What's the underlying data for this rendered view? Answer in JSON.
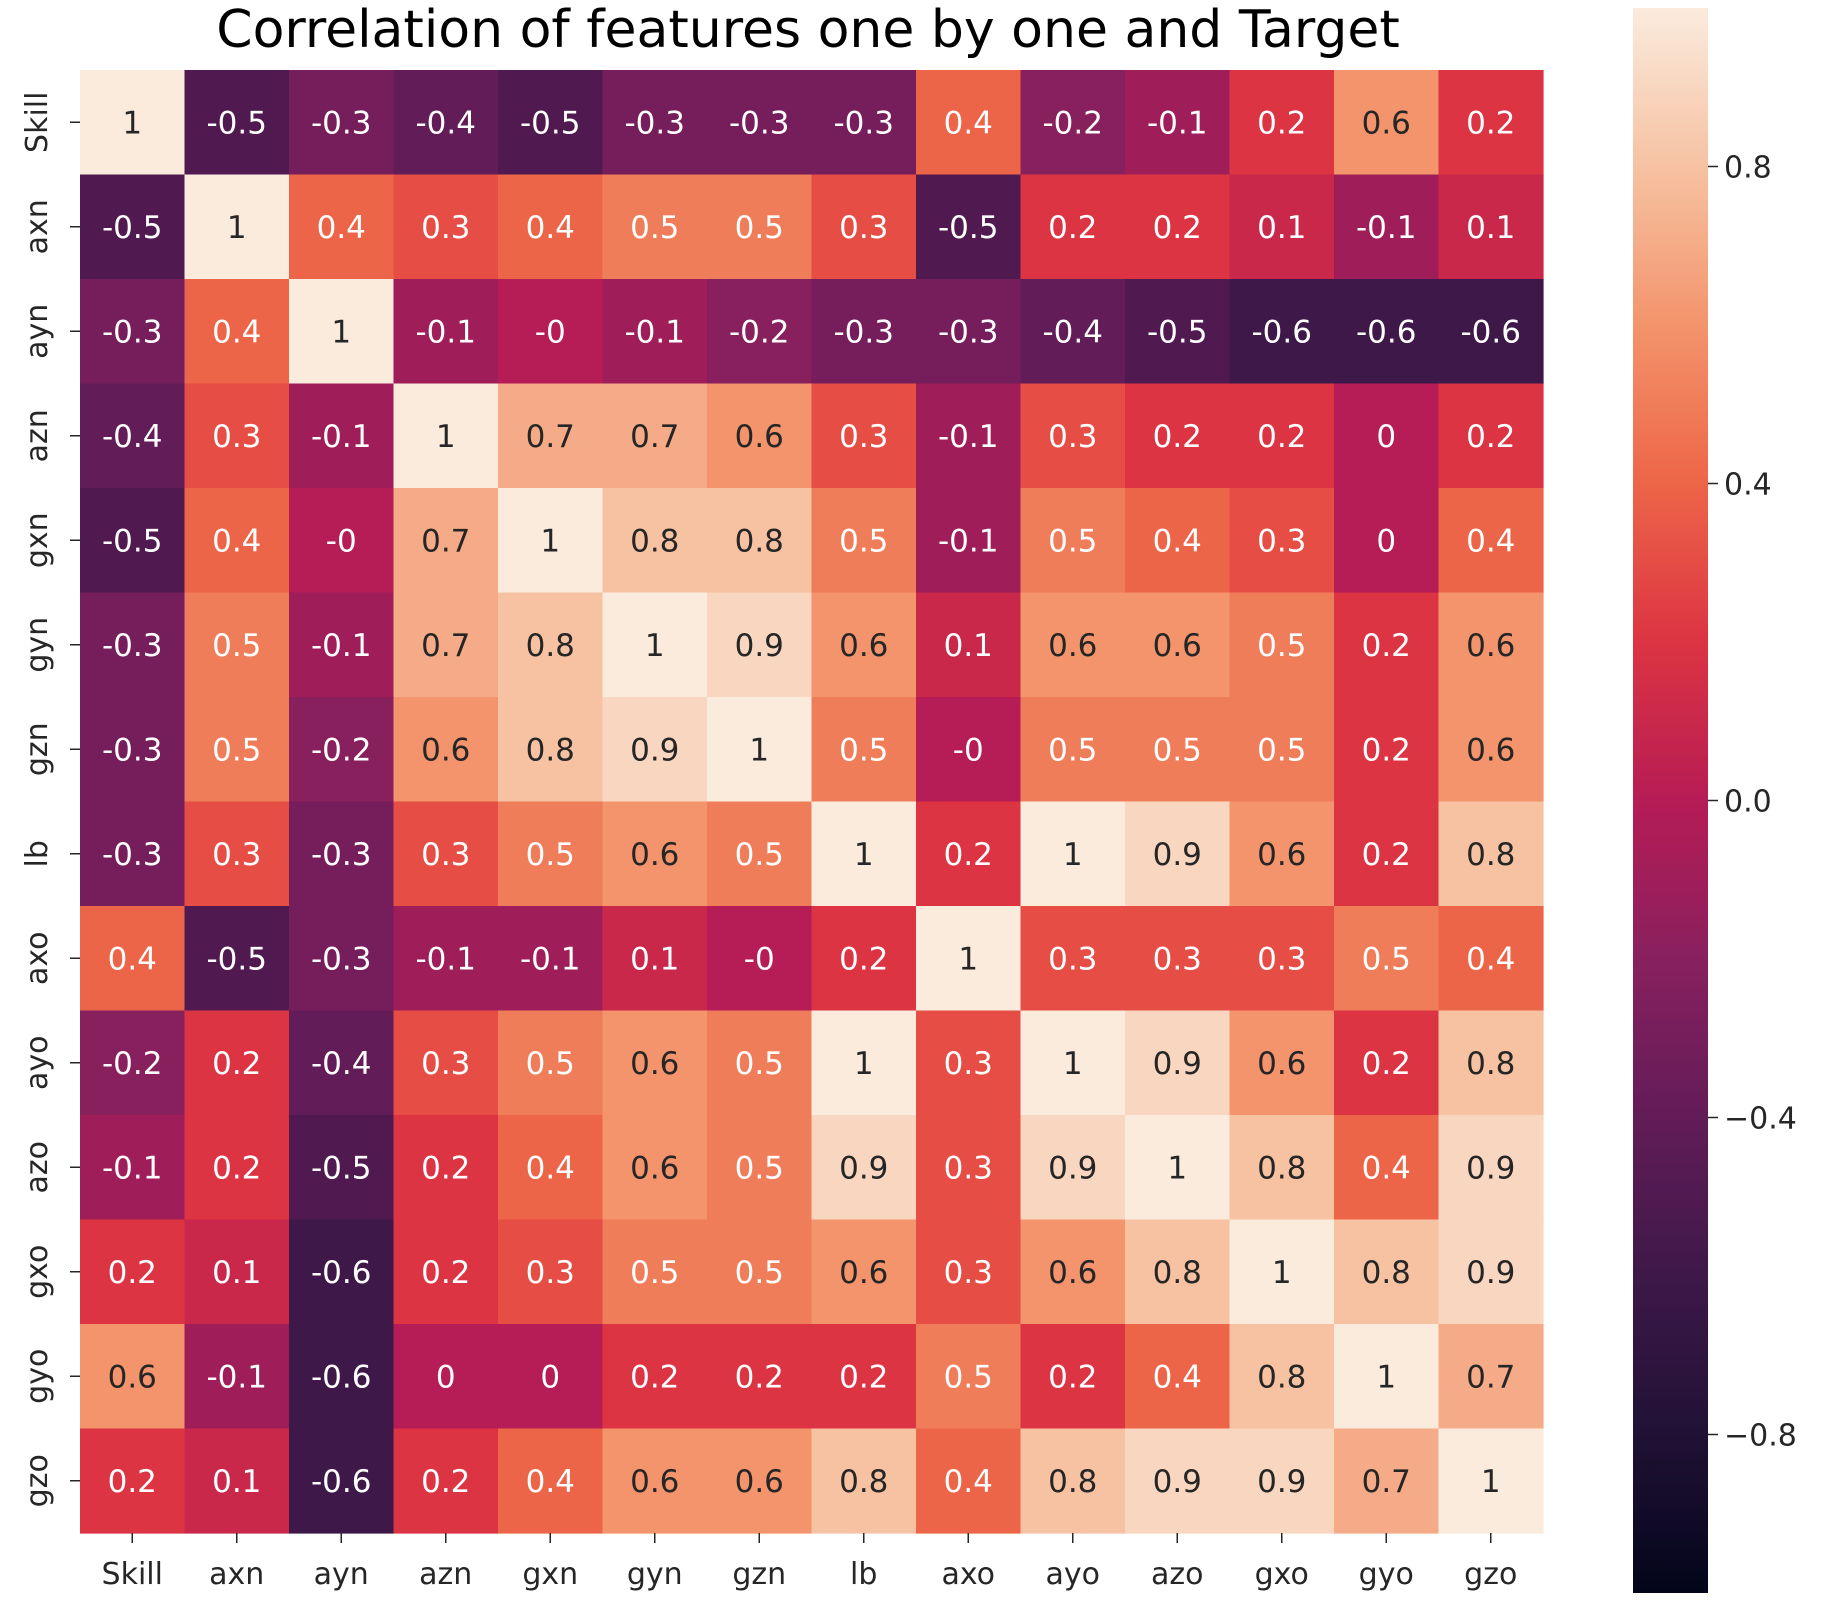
{
  "chart_data": {
    "type": "heatmap",
    "title": "Correlation of features one by one and Target",
    "x_categories": [
      "Skill",
      "axn",
      "ayn",
      "azn",
      "gxn",
      "gyn",
      "gzn",
      "lb",
      "axo",
      "ayo",
      "azo",
      "gxo",
      "gyo",
      "gzo"
    ],
    "y_categories": [
      "Skill",
      "axn",
      "ayn",
      "azn",
      "gxn",
      "gyn",
      "gzn",
      "lb",
      "axo",
      "ayo",
      "azo",
      "gxo",
      "gyo",
      "gzo"
    ],
    "values": [
      [
        "1",
        "-0.5",
        "-0.3",
        "-0.4",
        "-0.5",
        "-0.3",
        "-0.3",
        "-0.3",
        "0.4",
        "-0.2",
        "-0.1",
        "0.2",
        "0.6",
        "0.2"
      ],
      [
        "-0.5",
        "1",
        "0.4",
        "0.3",
        "0.4",
        "0.5",
        "0.5",
        "0.3",
        "-0.5",
        "0.2",
        "0.2",
        "0.1",
        "-0.1",
        "0.1"
      ],
      [
        "-0.3",
        "0.4",
        "1",
        "-0.1",
        "-0",
        "-0.1",
        "-0.2",
        "-0.3",
        "-0.3",
        "-0.4",
        "-0.5",
        "-0.6",
        "-0.6",
        "-0.6"
      ],
      [
        "-0.4",
        "0.3",
        "-0.1",
        "1",
        "0.7",
        "0.7",
        "0.6",
        "0.3",
        "-0.1",
        "0.3",
        "0.2",
        "0.2",
        "0",
        "0.2"
      ],
      [
        "-0.5",
        "0.4",
        "-0",
        "0.7",
        "1",
        "0.8",
        "0.8",
        "0.5",
        "-0.1",
        "0.5",
        "0.4",
        "0.3",
        "0",
        "0.4"
      ],
      [
        "-0.3",
        "0.5",
        "-0.1",
        "0.7",
        "0.8",
        "1",
        "0.9",
        "0.6",
        "0.1",
        "0.6",
        "0.6",
        "0.5",
        "0.2",
        "0.6"
      ],
      [
        "-0.3",
        "0.5",
        "-0.2",
        "0.6",
        "0.8",
        "0.9",
        "1",
        "0.5",
        "-0",
        "0.5",
        "0.5",
        "0.5",
        "0.2",
        "0.6"
      ],
      [
        "-0.3",
        "0.3",
        "-0.3",
        "0.3",
        "0.5",
        "0.6",
        "0.5",
        "1",
        "0.2",
        "1",
        "0.9",
        "0.6",
        "0.2",
        "0.8"
      ],
      [
        "0.4",
        "-0.5",
        "-0.3",
        "-0.1",
        "-0.1",
        "0.1",
        "-0",
        "0.2",
        "1",
        "0.3",
        "0.3",
        "0.3",
        "0.5",
        "0.4"
      ],
      [
        "-0.2",
        "0.2",
        "-0.4",
        "0.3",
        "0.5",
        "0.6",
        "0.5",
        "1",
        "0.3",
        "1",
        "0.9",
        "0.6",
        "0.2",
        "0.8"
      ],
      [
        "-0.1",
        "0.2",
        "-0.5",
        "0.2",
        "0.4",
        "0.6",
        "0.5",
        "0.9",
        "0.3",
        "0.9",
        "1",
        "0.8",
        "0.4",
        "0.9"
      ],
      [
        "0.2",
        "0.1",
        "-0.6",
        "0.2",
        "0.3",
        "0.5",
        "0.5",
        "0.6",
        "0.3",
        "0.6",
        "0.8",
        "1",
        "0.8",
        "0.9"
      ],
      [
        "0.6",
        "-0.1",
        "-0.6",
        "0",
        "0",
        "0.2",
        "0.2",
        "0.2",
        "0.5",
        "0.2",
        "0.4",
        "0.8",
        "1",
        "0.7"
      ],
      [
        "0.2",
        "0.1",
        "-0.6",
        "0.2",
        "0.4",
        "0.6",
        "0.6",
        "0.8",
        "0.4",
        "0.8",
        "0.9",
        "0.9",
        "0.7",
        "1"
      ]
    ],
    "colorbar": {
      "range": [
        -1,
        1
      ],
      "ticks": [
        0.8,
        0.4,
        0.0,
        -0.4,
        -0.8
      ],
      "tick_labels": [
        "0.8",
        "0.4",
        "0.0",
        "−0.4",
        "−0.8"
      ]
    },
    "colormap": "rocket",
    "annotated": true
  }
}
